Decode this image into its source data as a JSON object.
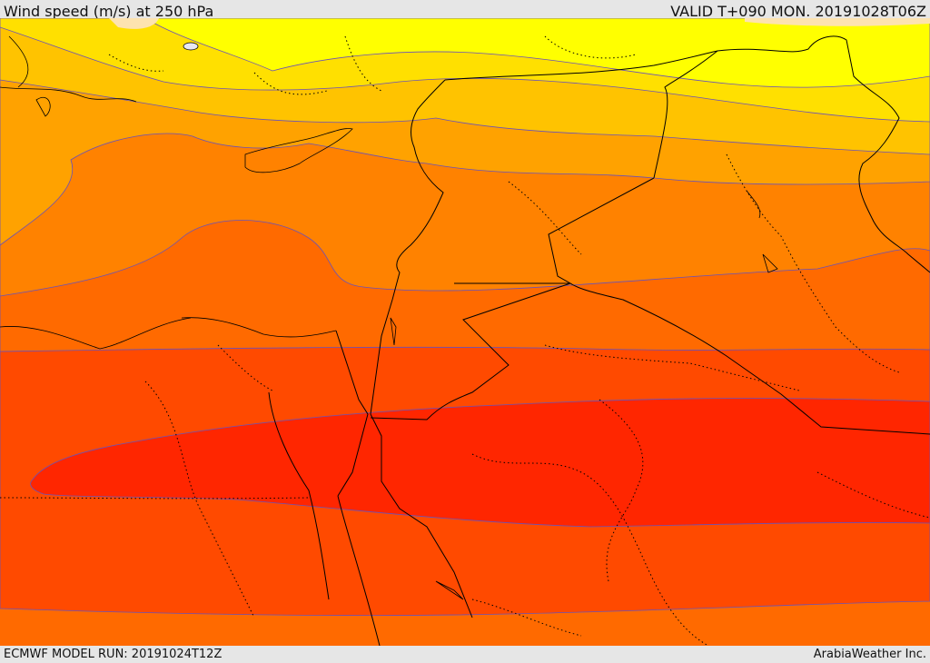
{
  "header": {
    "title": "Wind speed (m/s) at 250 hPa",
    "valid": "VALID T+090 MON. 20191028T06Z"
  },
  "footer": {
    "model_run": "ECMWF MODEL RUN: 20191024T12Z",
    "credit": "ArabiaWeather Inc."
  },
  "colors": {
    "band_lt_yellow": "#ffff00",
    "band_yellow": "#ffe000",
    "band_gold": "#ffc300",
    "band_amber": "#ffa200",
    "band_orange": "#ff8200",
    "band_dk_orange": "#ff6a00",
    "band_orange_red": "#ff4a00",
    "band_red": "#ff2600",
    "contour": "#6a52b8",
    "border": "#000000"
  }
}
